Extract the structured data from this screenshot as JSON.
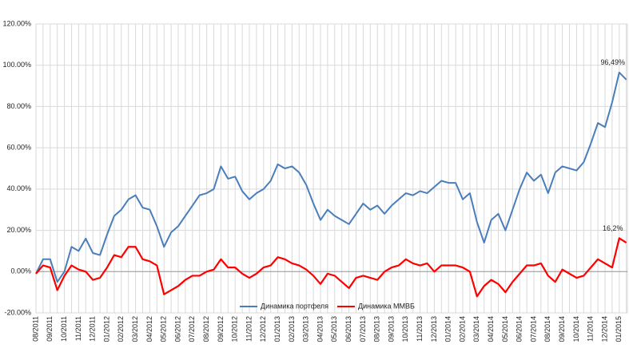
{
  "chart_data": {
    "type": "line",
    "categories": [
      "08/2011",
      null,
      "09/2011",
      null,
      "10/2011",
      null,
      "11/2011",
      null,
      "12/2011",
      null,
      "01/2012",
      null,
      "02/2012",
      null,
      "03/2012",
      null,
      "04/2012",
      null,
      "05/2012",
      null,
      "06/2012",
      null,
      "07/2012",
      null,
      "08/2012",
      null,
      "09/2012",
      null,
      "10/2012",
      null,
      "11/2012",
      null,
      "12/2012",
      null,
      "01/2013",
      null,
      "02/2013",
      null,
      "03/2013",
      null,
      "04/2013",
      null,
      "05/2013",
      null,
      "06/2013",
      null,
      "07/2013",
      null,
      "08/2013",
      null,
      "09/2013",
      null,
      "10/2013",
      null,
      "11/2013",
      null,
      "12/2013",
      null,
      "01/2014",
      null,
      "02/2014",
      null,
      "03/2014",
      null,
      "04/2014",
      null,
      "05/2014",
      null,
      "06/2014",
      null,
      "07/2014",
      null,
      "08/2014",
      null,
      "09/2014",
      null,
      "10/2014",
      null,
      "11/2014",
      null,
      "12/2014",
      null,
      "01/2015",
      null
    ],
    "series": [
      {
        "name": "Динамика портфеля",
        "color": "#4a7ebb",
        "values": [
          -1,
          6,
          6,
          -5,
          0,
          12,
          10,
          16,
          9,
          8,
          18,
          27,
          30,
          35,
          37,
          31,
          30,
          22,
          12,
          19,
          22,
          27,
          32,
          37,
          38,
          40,
          51,
          45,
          46,
          39,
          35,
          38,
          40,
          44,
          52,
          50,
          51,
          48,
          42,
          33,
          25,
          30,
          27,
          25,
          23,
          28,
          33,
          30,
          32,
          28,
          32,
          35,
          38,
          37,
          39,
          38,
          41,
          44,
          43,
          43,
          35,
          38,
          24,
          14,
          25,
          28,
          20,
          30,
          40,
          48,
          44,
          47,
          38,
          48,
          51,
          50,
          49,
          53,
          62,
          72,
          70,
          82,
          96.49,
          93
        ],
        "value_labels": [
          null,
          null,
          null,
          null,
          null,
          null,
          null,
          null,
          null,
          null,
          null,
          null,
          null,
          null,
          null,
          null,
          null,
          null,
          null,
          null,
          null,
          null,
          null,
          null,
          null,
          null,
          null,
          null,
          null,
          null,
          null,
          null,
          null,
          null,
          null,
          null,
          null,
          null,
          null,
          null,
          null,
          null,
          null,
          null,
          null,
          null,
          null,
          null,
          null,
          null,
          null,
          null,
          null,
          null,
          null,
          null,
          null,
          null,
          null,
          null,
          null,
          null,
          null,
          null,
          null,
          null,
          null,
          null,
          null,
          null,
          null,
          null,
          null,
          null,
          null,
          null,
          null,
          null,
          null,
          null,
          null,
          null,
          "96,49%",
          null
        ]
      },
      {
        "name": "Динамика ММВБ",
        "color": "#ff0000",
        "values": [
          -1,
          3,
          2,
          -9,
          -2,
          3,
          1,
          0,
          -4,
          -3,
          2,
          8,
          7,
          12,
          12,
          6,
          5,
          3,
          -11,
          -9,
          -7,
          -4,
          -2,
          -2,
          0,
          1,
          6,
          2,
          2,
          -1,
          -3,
          -1,
          2,
          3,
          7,
          6,
          4,
          3,
          1,
          -2,
          -6,
          -1,
          -2,
          -5,
          -8,
          -3,
          -2,
          -3,
          -4,
          0,
          2,
          3,
          6,
          4,
          3,
          4,
          0,
          3,
          3,
          3,
          2,
          0,
          -12,
          -7,
          -4,
          -6,
          -10,
          -5,
          -1,
          3,
          3,
          4,
          -2,
          -5,
          1,
          -1,
          -3,
          -2,
          2,
          6,
          4,
          2,
          16.2,
          14
        ],
        "value_labels": [
          null,
          null,
          null,
          null,
          null,
          null,
          null,
          null,
          null,
          null,
          null,
          null,
          null,
          null,
          null,
          null,
          null,
          null,
          null,
          null,
          null,
          null,
          null,
          null,
          null,
          null,
          null,
          null,
          null,
          null,
          null,
          null,
          null,
          null,
          null,
          null,
          null,
          null,
          null,
          null,
          null,
          null,
          null,
          null,
          null,
          null,
          null,
          null,
          null,
          null,
          null,
          null,
          null,
          null,
          null,
          null,
          null,
          null,
          null,
          null,
          null,
          null,
          null,
          null,
          null,
          null,
          null,
          null,
          null,
          null,
          null,
          null,
          null,
          null,
          null,
          null,
          null,
          null,
          null,
          null,
          null,
          null,
          "16,2%",
          null
        ]
      }
    ],
    "ylim": [
      -20,
      120
    ],
    "yticks": [
      {
        "value": -20,
        "label": "-20.00%"
      },
      {
        "value": 0,
        "label": "0.00%"
      },
      {
        "value": 20,
        "label": "20.00%"
      },
      {
        "value": 40,
        "label": "40.00%"
      },
      {
        "value": 60,
        "label": "60.00%"
      },
      {
        "value": 80,
        "label": "80.00%"
      },
      {
        "value": 100,
        "label": "100.00%"
      },
      {
        "value": 120,
        "label": "120.00%"
      }
    ],
    "grid": true,
    "legend": "bottom"
  }
}
